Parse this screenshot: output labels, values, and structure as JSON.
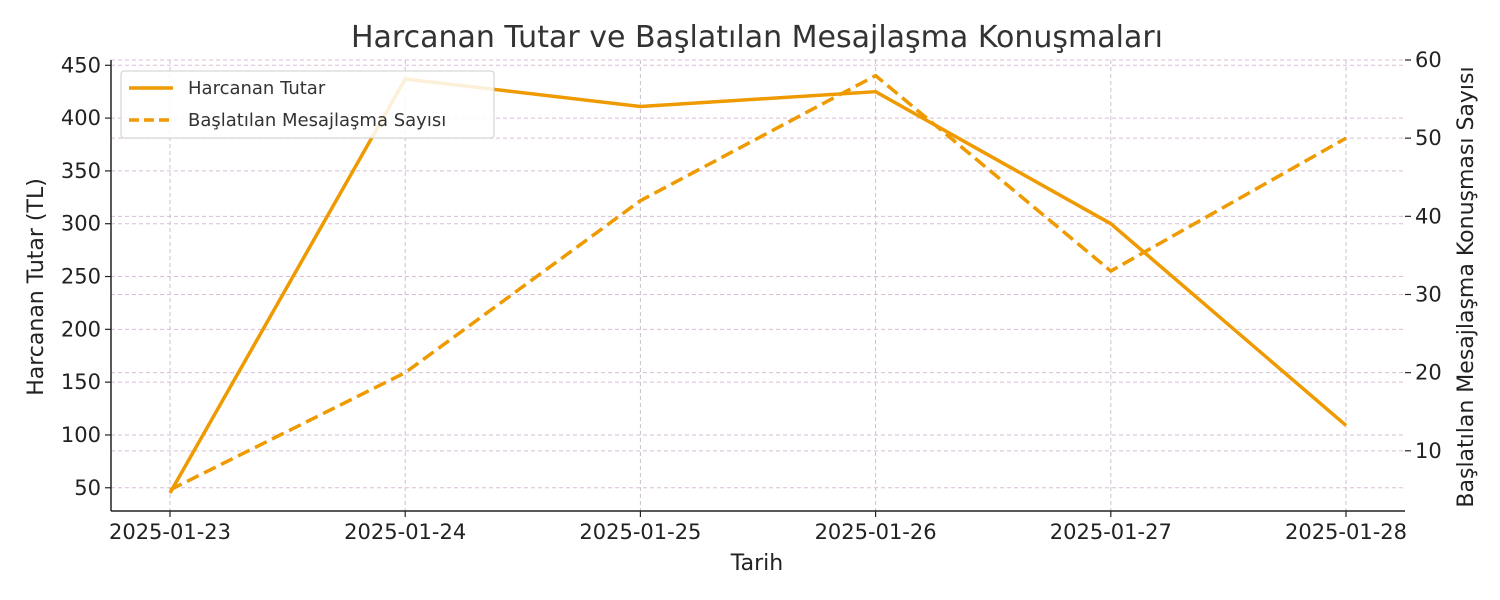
{
  "chart_data": {
    "type": "line",
    "title": "Harcanan Tutar ve Başlatılan Mesajlaşma Konuşmaları",
    "xlabel": "Tarih",
    "ylabel_left": "Harcanan Tutar (TL)",
    "ylabel_right": "Başlatılan Mesajlaşma Konuşması Sayısı",
    "x": [
      "2025-01-23",
      "2025-01-24",
      "2025-01-25",
      "2025-01-26",
      "2025-01-27",
      "2025-01-28"
    ],
    "ylim_left": [
      28,
      455
    ],
    "yticks_left": [
      50,
      100,
      150,
      200,
      250,
      300,
      350,
      400,
      450
    ],
    "ylim_right": [
      2.3,
      60
    ],
    "yticks_right": [
      10,
      20,
      30,
      40,
      50,
      60
    ],
    "series": [
      {
        "name": "Harcanan Tutar",
        "axis": "left",
        "style": "solid",
        "color": "#ee9a00",
        "values": [
          45,
          437,
          411,
          425,
          300,
          109
        ]
      },
      {
        "name": "Başlatılan Mesajlaşma Sayısı",
        "axis": "right",
        "style": "dashed",
        "color": "#ee9a00",
        "values": [
          5,
          20,
          42,
          58,
          33,
          50
        ]
      }
    ],
    "grid": true,
    "legend_position": "upper-left"
  }
}
